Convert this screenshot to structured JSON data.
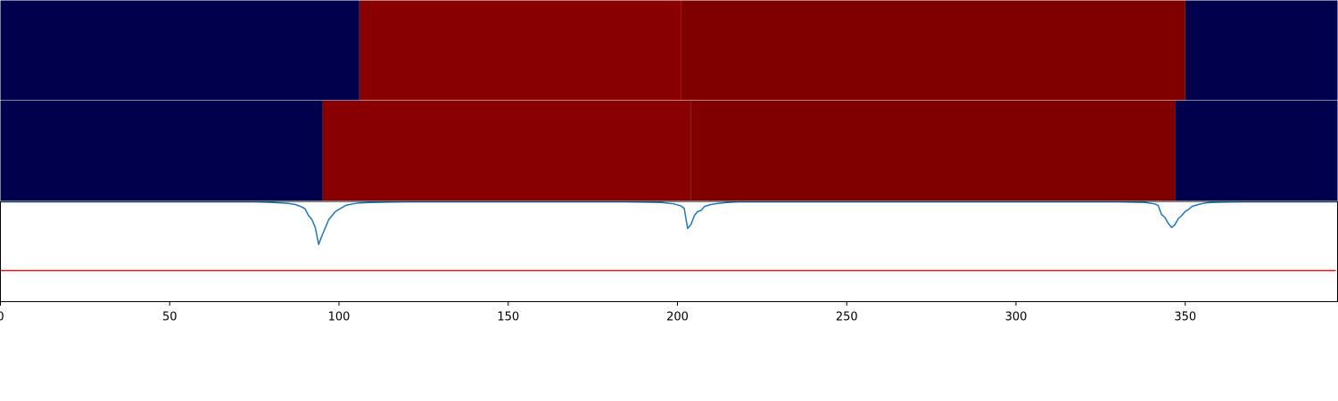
{
  "chart_data": {
    "type": "heatmap",
    "x_range": [
      0,
      395
    ],
    "xticks": [
      0,
      50,
      100,
      150,
      200,
      250,
      300,
      350
    ],
    "xtick_labels": [
      "0",
      "50",
      "100",
      "150",
      "200",
      "250",
      "300",
      "350"
    ],
    "segmentation_tracks": [
      {
        "segments": [
          {
            "start": 0,
            "end": 106,
            "color": "#00004c"
          },
          {
            "start": 106,
            "end": 201,
            "color": "#880000"
          },
          {
            "start": 201,
            "end": 350,
            "color": "#800000"
          },
          {
            "start": 350,
            "end": 395,
            "color": "#00004c"
          }
        ]
      },
      {
        "segments": [
          {
            "start": 0,
            "end": 95,
            "color": "#00004c"
          },
          {
            "start": 95,
            "end": 204,
            "color": "#880000"
          },
          {
            "start": 204,
            "end": 347,
            "color": "#800000"
          },
          {
            "start": 347,
            "end": 395,
            "color": "#00004c"
          }
        ]
      }
    ],
    "line_panel": {
      "y_range": [
        0,
        1
      ],
      "threshold": {
        "value": 0.31,
        "color": "#e41a1c"
      },
      "line_color": "#1f77b4",
      "baseline": 0.995,
      "dips": [
        {
          "x": [
            60,
            75,
            80,
            83,
            85,
            87,
            89,
            90,
            91,
            92,
            93,
            94,
            95,
            96,
            97,
            98,
            99,
            100,
            101,
            102,
            104,
            106,
            110,
            115,
            120
          ],
          "y": [
            0.995,
            0.995,
            0.99,
            0.985,
            0.98,
            0.97,
            0.945,
            0.925,
            0.86,
            0.82,
            0.74,
            0.57,
            0.66,
            0.74,
            0.82,
            0.86,
            0.9,
            0.92,
            0.94,
            0.96,
            0.975,
            0.985,
            0.99,
            0.993,
            0.995
          ]
        },
        {
          "x": [
            185,
            195,
            199,
            201,
            202,
            203,
            204,
            205,
            206,
            207,
            208,
            210,
            212,
            215,
            218
          ],
          "y": [
            0.995,
            0.99,
            0.975,
            0.955,
            0.93,
            0.73,
            0.77,
            0.86,
            0.9,
            0.91,
            0.95,
            0.97,
            0.98,
            0.99,
            0.995
          ]
        },
        {
          "x": [
            330,
            338,
            341,
            342,
            343,
            344,
            345,
            346,
            347,
            348,
            349,
            350,
            351,
            352,
            354,
            356,
            358,
            362,
            368
          ],
          "y": [
            0.995,
            0.99,
            0.975,
            0.96,
            0.87,
            0.84,
            0.78,
            0.74,
            0.77,
            0.83,
            0.86,
            0.9,
            0.92,
            0.95,
            0.97,
            0.985,
            0.99,
            0.993,
            0.995
          ]
        }
      ]
    }
  }
}
